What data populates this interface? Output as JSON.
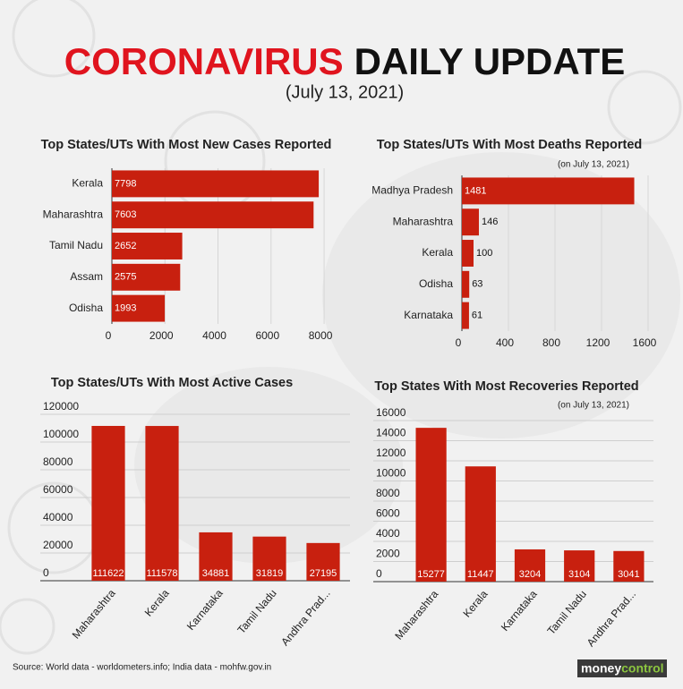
{
  "header": {
    "title_red": "CORONAVIRUS",
    "title_black": "DAILY UPDATE",
    "date": "(July 13, 2021)"
  },
  "chart_data": [
    {
      "type": "bar",
      "orientation": "horizontal",
      "title": "Top States/UTs With Most New Cases Reported",
      "categories": [
        "Kerala",
        "Maharashtra",
        "Tamil Nadu",
        "Assam",
        "Odisha"
      ],
      "values": [
        7798,
        7603,
        2652,
        2575,
        1993
      ],
      "color": "#c8200f",
      "xlim": [
        0,
        8200
      ],
      "xticks": [
        0,
        2000,
        4000,
        6000,
        8000
      ],
      "grid": true
    },
    {
      "type": "bar",
      "orientation": "horizontal",
      "title": "Top States/UTs With Most Deaths Reported",
      "subtitle": "(on July 13, 2021)",
      "categories": [
        "Madhya Pradesh",
        "Maharashtra",
        "Kerala",
        "Odisha",
        "Karnataka"
      ],
      "values": [
        1481,
        146,
        100,
        63,
        61
      ],
      "color": "#c8200f",
      "xlim": [
        0,
        1600
      ],
      "xticks": [
        0,
        400,
        800,
        1200,
        1600
      ],
      "grid": true
    },
    {
      "type": "bar",
      "orientation": "vertical",
      "title": "Top States/UTs With Most Active Cases",
      "categories": [
        "Maharashtra",
        "Kerala",
        "Karnataka",
        "Tamil Nadu",
        "Andhra Prad..."
      ],
      "values": [
        111622,
        111578,
        34881,
        31819,
        27195
      ],
      "color": "#c8200f",
      "ylim": [
        0,
        120000
      ],
      "yticks": [
        0,
        20000,
        40000,
        60000,
        80000,
        100000,
        120000
      ],
      "grid": true
    },
    {
      "type": "bar",
      "orientation": "vertical",
      "title": "Top States With Most Recoveries Reported",
      "subtitle": "(on July 13, 2021)",
      "categories": [
        "Maharashtra",
        "Kerala",
        "Karnataka",
        "Tamil Nadu",
        "Andhra Prad..."
      ],
      "values": [
        15277,
        11447,
        3204,
        3104,
        3041
      ],
      "color": "#c8200f",
      "ylim": [
        0,
        16000
      ],
      "yticks": [
        0,
        2000,
        4000,
        6000,
        8000,
        10000,
        12000,
        14000,
        16000
      ],
      "grid": true
    }
  ],
  "footer": {
    "source": "Source: World data - worldometers.info; India data - mohfw.gov.in",
    "logo_money": "money",
    "logo_control": "control"
  }
}
